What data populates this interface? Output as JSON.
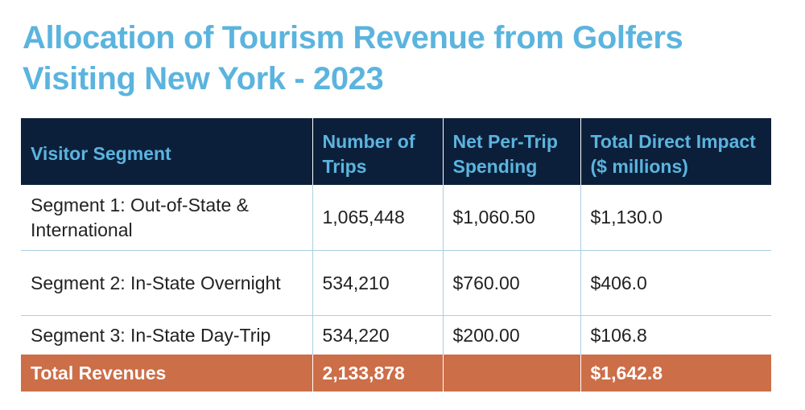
{
  "title_lines": [
    "Allocation of Tourism Revenue from Golfers",
    "Visiting New York - 2023"
  ],
  "colors": {
    "title": "#5bb4de",
    "header_bg": "#0c1f3a",
    "header_text": "#5bb4de",
    "row_border": "#a9cfe3",
    "total_bg": "#cc6e48",
    "total_text": "#ffffff"
  },
  "chart_data": {
    "type": "table",
    "title": "Allocation of Tourism Revenue from Golfers Visiting New York - 2023",
    "columns": [
      "Visitor Segment",
      "Number of Trips",
      "Net Per-Trip Spending",
      "Total Direct Impact ($ millions)"
    ],
    "rows": [
      [
        "Segment 1: Out-of-State & International",
        "1,065,448",
        "$1,060.50",
        "$1,130.0"
      ],
      [
        "Segment 2: In-State Overnight",
        "534,210",
        "$760.00",
        "$406.0"
      ],
      [
        "Segment 3: In-State Day-Trip",
        "534,220",
        "$200.00",
        "$106.8"
      ]
    ],
    "total": [
      "Total Revenues",
      "2,133,878",
      "",
      "$1,642.8"
    ]
  }
}
